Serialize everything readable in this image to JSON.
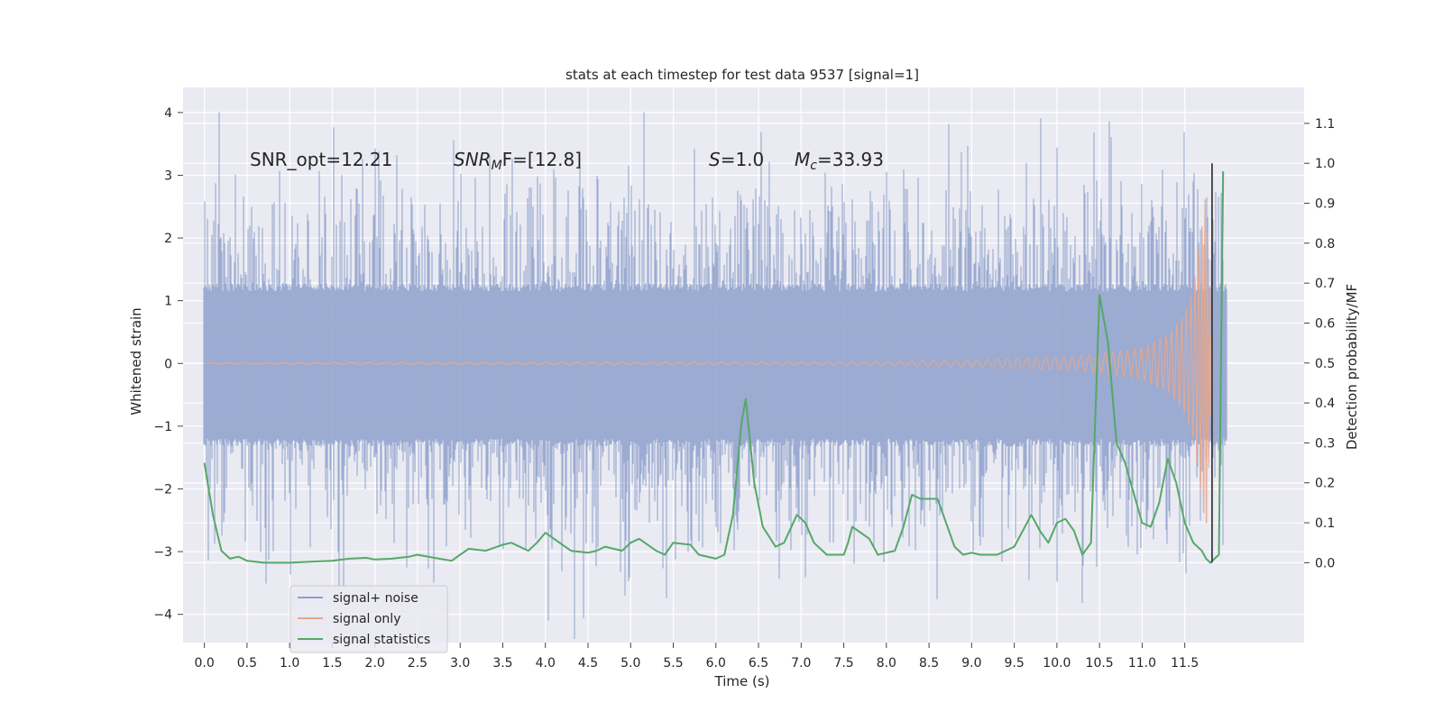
{
  "chart_data": {
    "type": "line",
    "title": "stats at each timestep for test data 9537 [signal=1]",
    "xlabel": "Time (s)",
    "ylabel": "Whitened strain",
    "ylabel_right": "Detection probability/MF",
    "xlim": [
      -0.25,
      12.9
    ],
    "ylim": [
      -4.45,
      4.4
    ],
    "ylim_right": [
      -0.2,
      1.19
    ],
    "x_ticks": [
      "0.0",
      "0.5",
      "1.0",
      "1.5",
      "2.0",
      "2.5",
      "3.0",
      "3.5",
      "4.0",
      "4.5",
      "5.0",
      "5.5",
      "6.0",
      "6.5",
      "7.0",
      "7.5",
      "8.0",
      "8.5",
      "9.0",
      "9.5",
      "10.0",
      "10.5",
      "11.0",
      "11.5"
    ],
    "y_ticks": [
      "4",
      "3",
      "2",
      "1",
      "0",
      "−1",
      "−2",
      "−3",
      "−4"
    ],
    "y_ticks_right": [
      "1.1",
      "1.0",
      "0.9",
      "0.8",
      "0.7",
      "0.6",
      "0.5",
      "0.4",
      "0.3",
      "0.2",
      "0.1",
      "0.0"
    ],
    "grid": true,
    "legend_position": "lower-left",
    "annotations": {
      "snr_opt": "SNR_opt=12.21",
      "snr_mf_sym": "SNR",
      "snr_mf_sub": "M",
      "snr_mf_rest": "F=[12.8]",
      "s_sym": "S",
      "s_rest": "=1.0",
      "mc_sym": "M",
      "mc_sub": "c",
      "mc_rest": "=33.93"
    },
    "vertical_marker_x": 11.82,
    "series": [
      {
        "name": "signal+ noise",
        "color": "#8da0cb",
        "axis": "left",
        "x_range": [
          0.0,
          11.99
        ],
        "typical_band": [
          -1.3,
          1.25
        ],
        "peak_max": 4.0,
        "peak_min": -4.1
      },
      {
        "name": "signal only",
        "color": "#e5a78f",
        "axis": "left",
        "x_range": [
          0.0,
          11.99
        ],
        "amplitude": [
          [
            0.0,
            0.01
          ],
          [
            7.5,
            0.03
          ],
          [
            9.0,
            0.06
          ],
          [
            10.0,
            0.1
          ],
          [
            10.5,
            0.15
          ],
          [
            11.0,
            0.25
          ],
          [
            11.3,
            0.45
          ],
          [
            11.5,
            0.8
          ],
          [
            11.6,
            1.2
          ],
          [
            11.7,
            2.2
          ],
          [
            11.75,
            2.8
          ],
          [
            11.8,
            1.0
          ],
          [
            11.82,
            0.0
          ]
        ]
      },
      {
        "name": "signal statistics",
        "color": "#55a868",
        "axis": "right",
        "x": [
          0.0,
          0.1,
          0.2,
          0.3,
          0.4,
          0.5,
          0.7,
          1.0,
          1.3,
          1.5,
          1.7,
          1.9,
          2.0,
          2.2,
          2.4,
          2.5,
          2.7,
          2.9,
          3.0,
          3.1,
          3.3,
          3.5,
          3.6,
          3.8,
          3.9,
          4.0,
          4.1,
          4.3,
          4.5,
          4.6,
          4.7,
          4.9,
          5.0,
          5.1,
          5.3,
          5.4,
          5.5,
          5.7,
          5.8,
          6.0,
          6.1,
          6.2,
          6.3,
          6.35,
          6.45,
          6.55,
          6.7,
          6.8,
          6.95,
          7.05,
          7.15,
          7.3,
          7.5,
          7.55,
          7.6,
          7.8,
          7.9,
          8.1,
          8.2,
          8.3,
          8.4,
          8.6,
          8.7,
          8.8,
          8.9,
          9.0,
          9.1,
          9.3,
          9.5,
          9.6,
          9.7,
          9.8,
          9.9,
          10.0,
          10.1,
          10.2,
          10.3,
          10.4,
          10.5,
          10.6,
          10.7,
          10.8,
          11.0,
          11.1,
          11.2,
          11.3,
          11.4,
          11.5,
          11.6,
          11.7,
          11.75,
          11.8,
          11.85,
          11.9,
          11.95
        ],
        "y": [
          0.25,
          0.12,
          0.03,
          0.01,
          0.015,
          0.005,
          0.0,
          0.0,
          0.003,
          0.005,
          0.01,
          0.012,
          0.008,
          0.01,
          0.015,
          0.02,
          0.012,
          0.005,
          0.02,
          0.035,
          0.03,
          0.045,
          0.05,
          0.03,
          0.05,
          0.075,
          0.06,
          0.03,
          0.025,
          0.03,
          0.04,
          0.03,
          0.05,
          0.06,
          0.03,
          0.02,
          0.05,
          0.045,
          0.02,
          0.01,
          0.02,
          0.12,
          0.35,
          0.41,
          0.2,
          0.09,
          0.04,
          0.05,
          0.12,
          0.1,
          0.05,
          0.02,
          0.02,
          0.05,
          0.09,
          0.06,
          0.02,
          0.03,
          0.09,
          0.17,
          0.16,
          0.16,
          0.1,
          0.04,
          0.02,
          0.025,
          0.02,
          0.02,
          0.04,
          0.08,
          0.12,
          0.08,
          0.05,
          0.1,
          0.11,
          0.08,
          0.02,
          0.05,
          0.67,
          0.55,
          0.3,
          0.25,
          0.1,
          0.09,
          0.15,
          0.26,
          0.2,
          0.1,
          0.05,
          0.03,
          0.01,
          0.0,
          0.01,
          0.02,
          0.98
        ]
      }
    ]
  }
}
